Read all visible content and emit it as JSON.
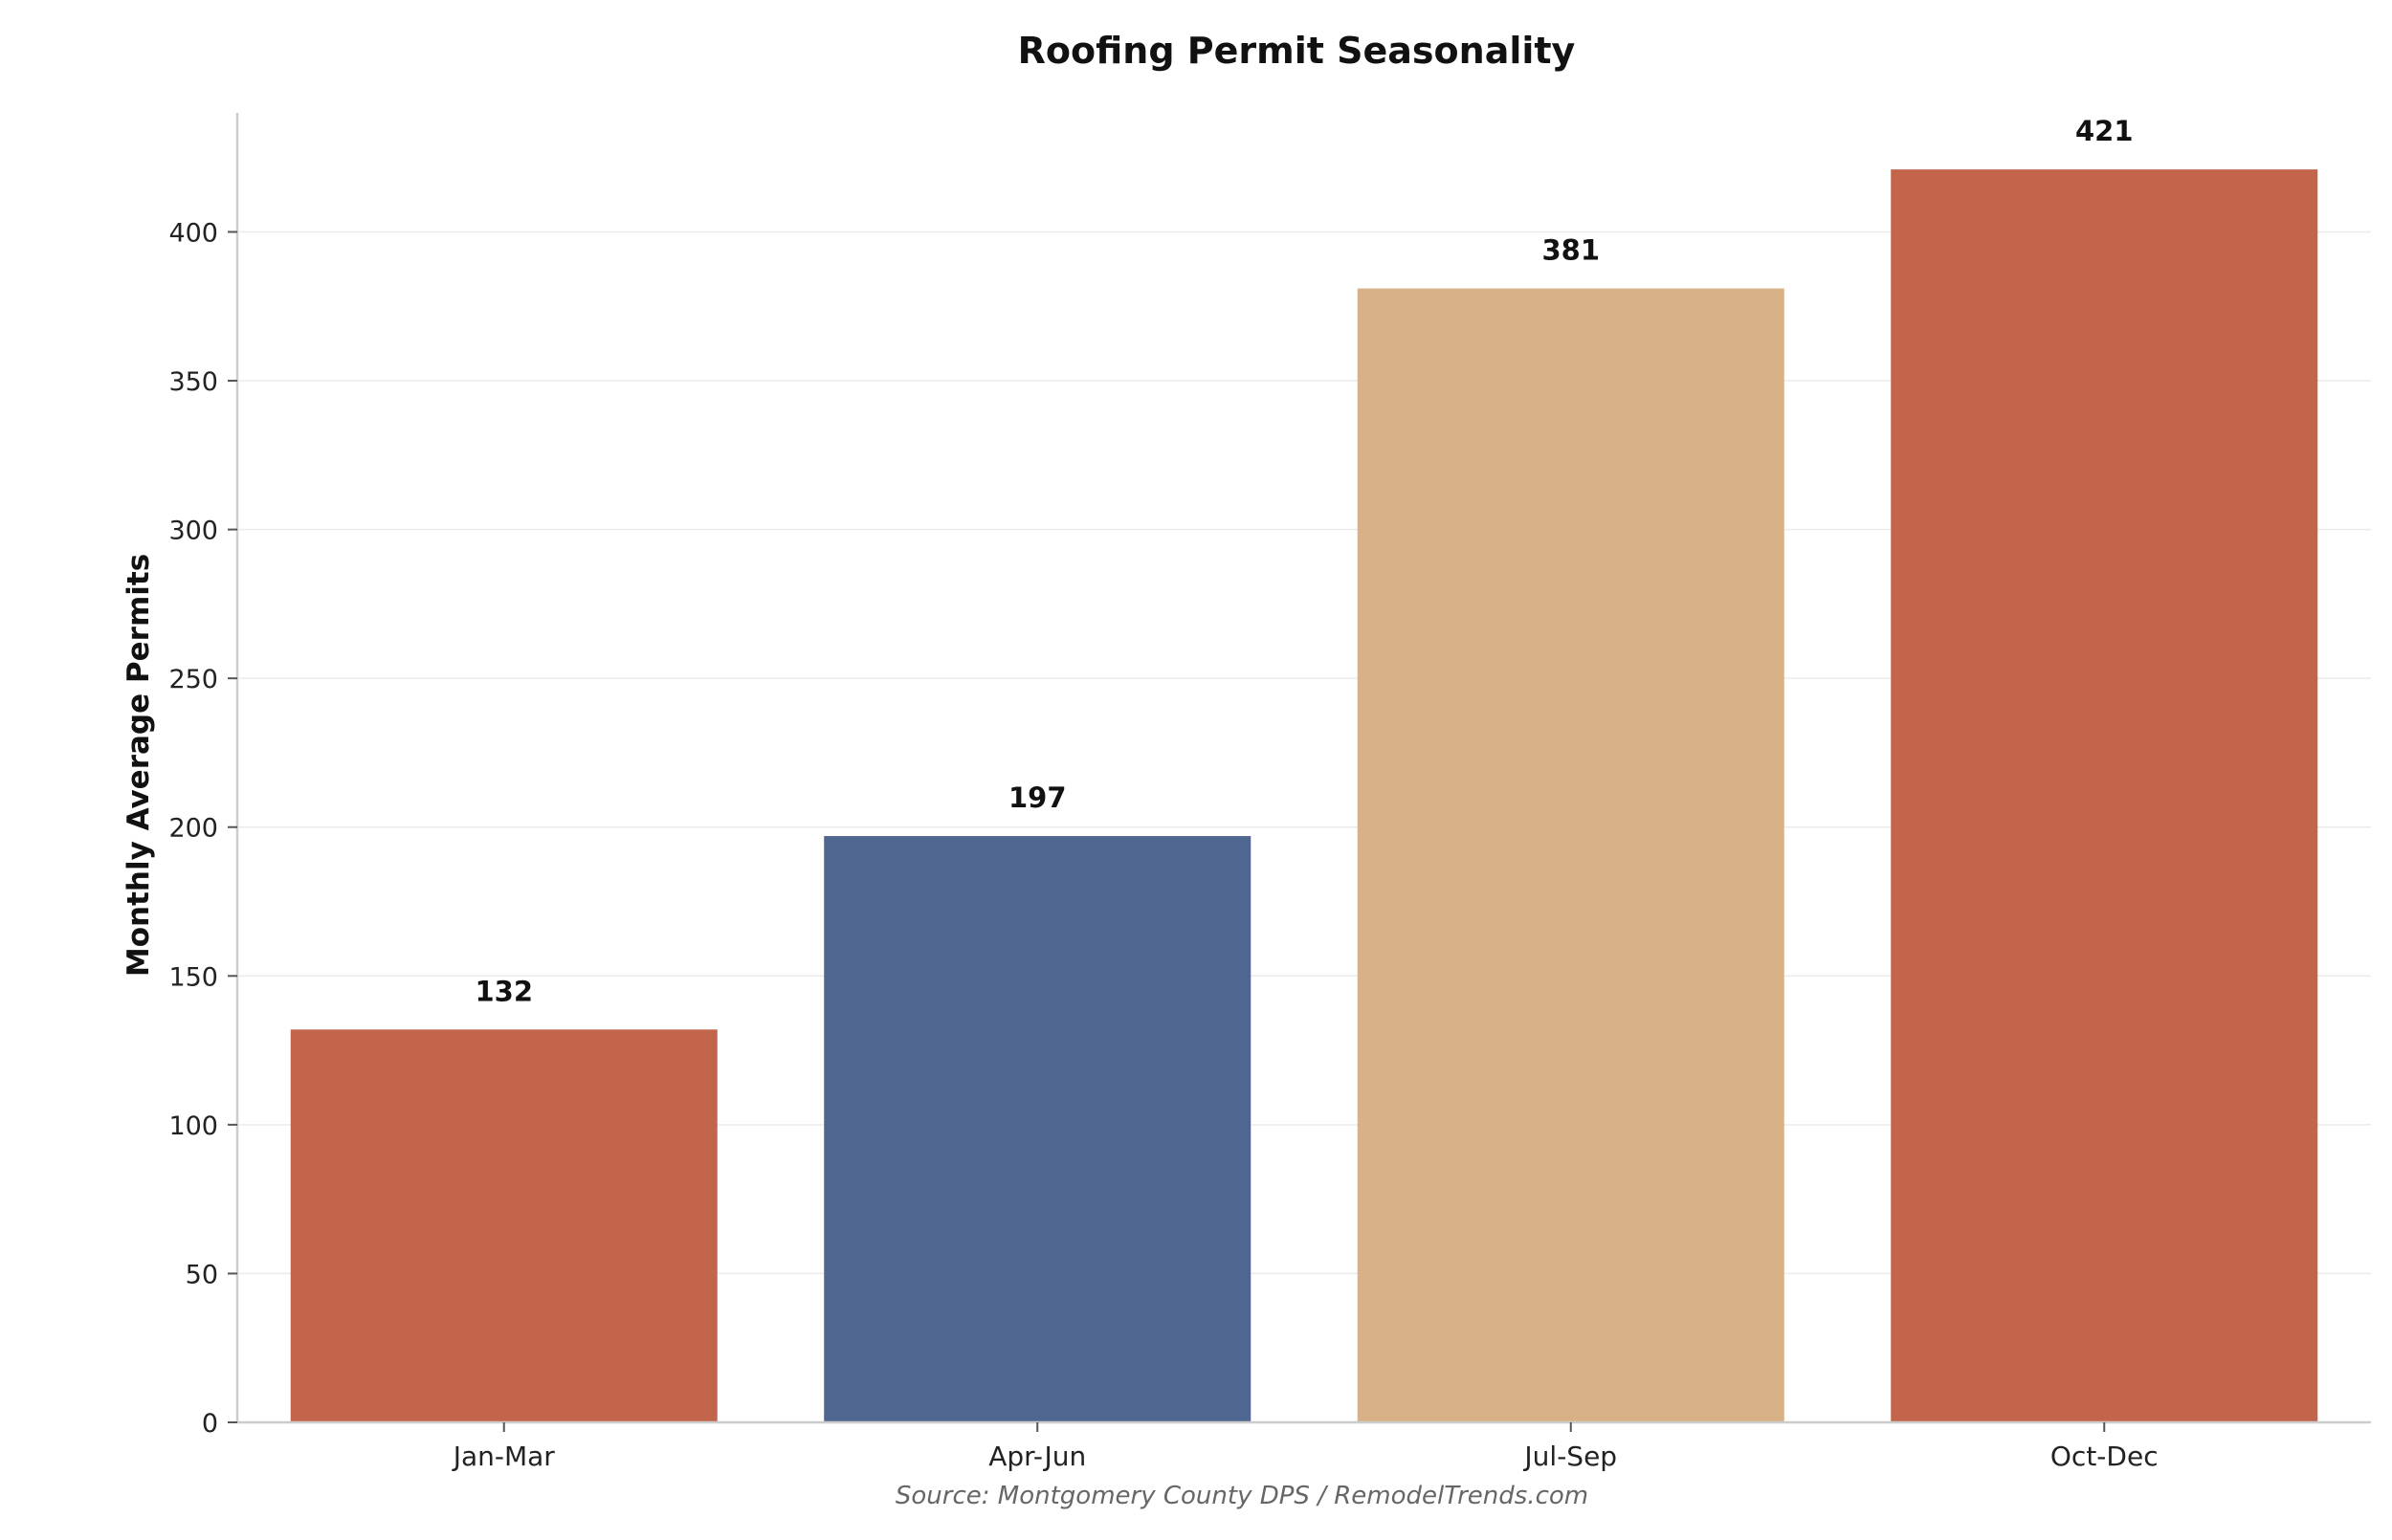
{
  "chart_data": {
    "type": "bar",
    "title": "Roofing Permit Seasonality",
    "xlabel": "",
    "ylabel": "Monthly Average Permits",
    "categories": [
      "Jan-Mar",
      "Apr-Jun",
      "Jul-Sep",
      "Oct-Dec"
    ],
    "values": [
      132,
      197,
      381,
      421
    ],
    "data_labels": [
      "132",
      "197",
      "381",
      "421"
    ],
    "bar_colors": [
      "#c2654a",
      "#4e6690",
      "#d8b186",
      "#c2654a"
    ],
    "ylim": [
      0,
      440
    ],
    "yticks": [
      0,
      50,
      100,
      150,
      200,
      250,
      300,
      350,
      400
    ],
    "ytick_labels": [
      "0",
      "50",
      "100",
      "150",
      "200",
      "250",
      "300",
      "350",
      "400"
    ],
    "grid": true,
    "grid_axis": "y",
    "legend": "none",
    "source_note": "Source: Montgomery County DPS / RemodelTrends.com"
  },
  "colors": {
    "axis": "#cccccc",
    "grid": "#ebebeb",
    "text": "#222222",
    "note": "#666666"
  }
}
